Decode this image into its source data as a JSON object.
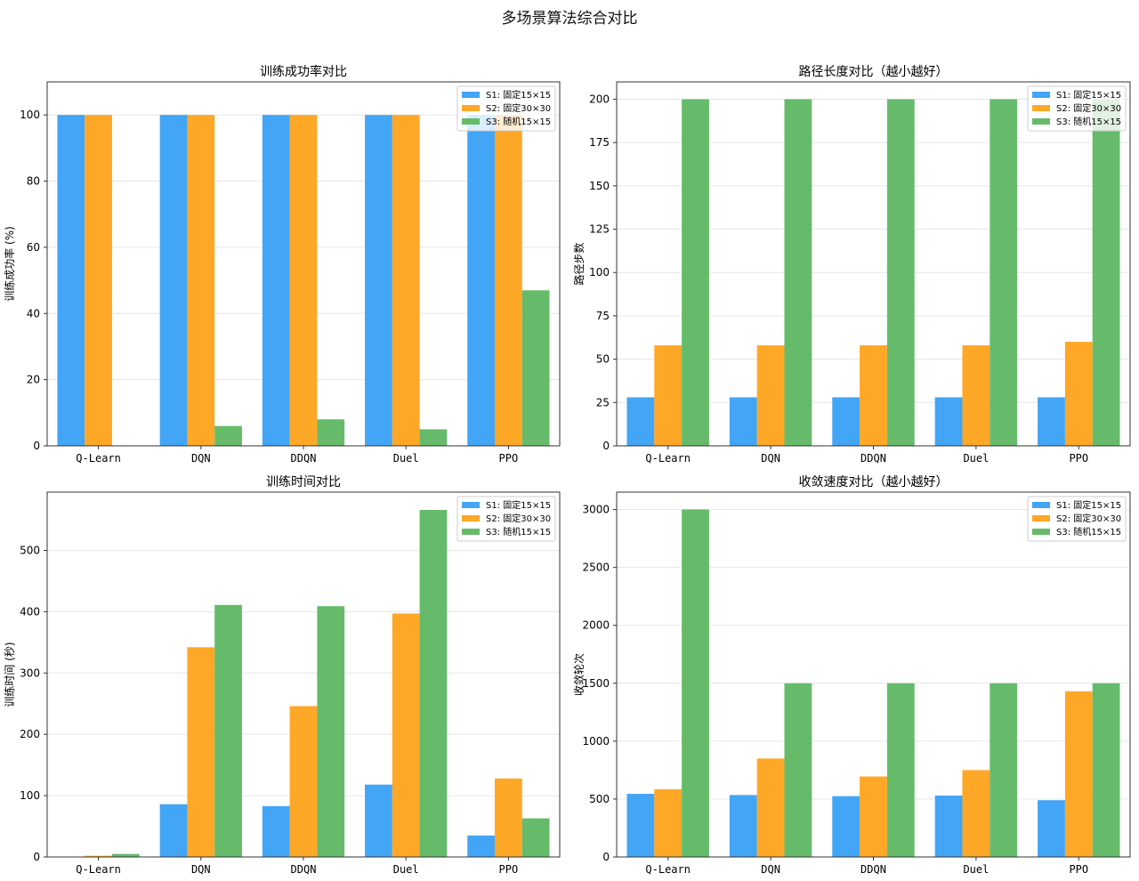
{
  "suptitle": "多场景算法综合对比",
  "series_names": [
    "S1: 固定15×15",
    "S2: 固定30×30",
    "S3: 随机15×15"
  ],
  "colors": [
    "#42a5f5",
    "#ffa726",
    "#66bb6a"
  ],
  "chart_data": [
    {
      "type": "bar",
      "title": "训练成功率对比",
      "ylabel": "训练成功率 (%)",
      "xlabel": "",
      "categories": [
        "Q-Learn",
        "DQN",
        "DDQN",
        "Duel",
        "PPO"
      ],
      "ylim": [
        0,
        110
      ],
      "yticks": [
        0,
        20,
        40,
        60,
        80,
        100
      ],
      "grid": true,
      "legend": "top-right",
      "series": [
        {
          "name": "S1: 固定15×15",
          "values": [
            100,
            100,
            100,
            100,
            100
          ]
        },
        {
          "name": "S2: 固定30×30",
          "values": [
            100,
            100,
            100,
            100,
            100
          ]
        },
        {
          "name": "S3: 随机15×15",
          "values": [
            0,
            6,
            8,
            5,
            47
          ]
        }
      ]
    },
    {
      "type": "bar",
      "title": "路径长度对比（越小越好）",
      "ylabel": "路径步数",
      "xlabel": "",
      "categories": [
        "Q-Learn",
        "DQN",
        "DDQN",
        "Duel",
        "PPO"
      ],
      "ylim": [
        0,
        210
      ],
      "yticks": [
        0,
        25,
        50,
        75,
        100,
        125,
        150,
        175,
        200
      ],
      "grid": true,
      "legend": "top-right",
      "series": [
        {
          "name": "S1: 固定15×15",
          "values": [
            28,
            28,
            28,
            28,
            28
          ]
        },
        {
          "name": "S2: 固定30×30",
          "values": [
            58,
            58,
            58,
            58,
            60
          ]
        },
        {
          "name": "S3: 随机15×15",
          "values": [
            200,
            200,
            200,
            200,
            200
          ]
        }
      ]
    },
    {
      "type": "bar",
      "title": "训练时间对比",
      "ylabel": "训练时间 (秒)",
      "xlabel": "",
      "categories": [
        "Q-Learn",
        "DQN",
        "DDQN",
        "Duel",
        "PPO"
      ],
      "ylim": [
        0,
        595
      ],
      "yticks": [
        0,
        100,
        200,
        300,
        400,
        500
      ],
      "grid": true,
      "legend": "top-right",
      "series": [
        {
          "name": "S1: 固定15×15",
          "values": [
            0.5,
            86,
            83,
            118,
            35
          ]
        },
        {
          "name": "S2: 固定30×30",
          "values": [
            2,
            342,
            246,
            397,
            128
          ]
        },
        {
          "name": "S3: 随机15×15",
          "values": [
            5,
            411,
            409,
            566,
            63
          ]
        }
      ]
    },
    {
      "type": "bar",
      "title": "收敛速度对比（越小越好）",
      "ylabel": "收敛轮次",
      "xlabel": "",
      "categories": [
        "Q-Learn",
        "DQN",
        "DDQN",
        "Duel",
        "PPO"
      ],
      "ylim": [
        0,
        3150
      ],
      "yticks": [
        0,
        500,
        1000,
        1500,
        2000,
        2500,
        3000
      ],
      "grid": true,
      "legend": "top-right",
      "series": [
        {
          "name": "S1: 固定15×15",
          "values": [
            545,
            535,
            525,
            530,
            490
          ]
        },
        {
          "name": "S2: 固定30×30",
          "values": [
            585,
            850,
            695,
            750,
            1430
          ]
        },
        {
          "name": "S3: 随机15×15",
          "values": [
            3000,
            1500,
            1500,
            1500,
            1500
          ]
        }
      ]
    }
  ]
}
